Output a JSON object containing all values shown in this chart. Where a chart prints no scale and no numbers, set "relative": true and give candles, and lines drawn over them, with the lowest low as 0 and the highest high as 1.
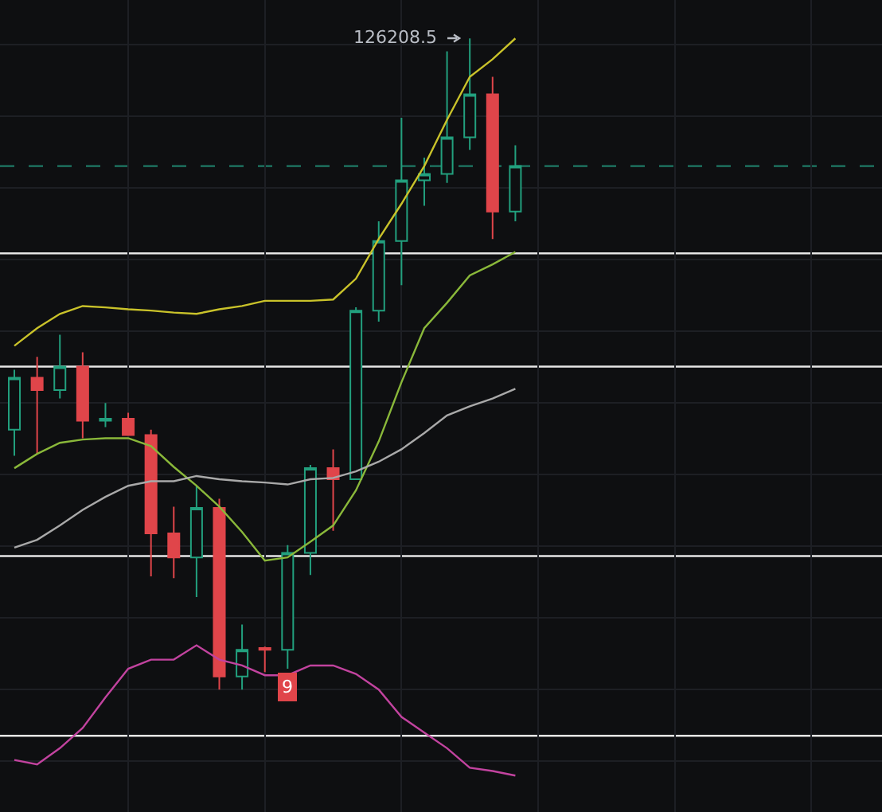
{
  "chart_data": {
    "type": "candlestick",
    "relative": true,
    "grid": true,
    "categories": [
      null,
      null,
      null,
      null,
      null,
      null,
      null,
      null,
      null,
      null,
      null,
      null,
      null,
      null,
      null,
      null,
      null,
      null,
      null,
      null,
      null,
      null,
      null
    ],
    "ohlc": [
      [
        0.399,
        0.491,
        0.359,
        0.479
      ],
      [
        0.479,
        0.511,
        0.362,
        0.46
      ],
      [
        0.46,
        0.545,
        0.447,
        0.496
      ],
      [
        0.496,
        0.518,
        0.386,
        0.413
      ],
      [
        0.413,
        0.44,
        0.403,
        0.416
      ],
      [
        0.416,
        0.425,
        0.391,
        0.391
      ],
      [
        0.391,
        0.399,
        0.174,
        0.24
      ],
      [
        0.24,
        0.281,
        0.171,
        0.203
      ],
      [
        0.203,
        0.313,
        0.142,
        0.279
      ],
      [
        0.279,
        0.293,
        0,
        0.02
      ],
      [
        0.02,
        0.1,
        0,
        0.061
      ],
      [
        0.064,
        0.066,
        0.027,
        0.061
      ],
      [
        0.061,
        0.222,
        0.032,
        0.21
      ],
      [
        0.21,
        0.345,
        0.176,
        0.34
      ],
      [
        0.34,
        0.369,
        0.244,
        0.323
      ],
      [
        0.323,
        0.587,
        0.323,
        0.582
      ],
      [
        0.582,
        0.719,
        0.565,
        0.689
      ],
      [
        0.689,
        0.878,
        0.621,
        0.782
      ],
      [
        0.782,
        0.817,
        0.743,
        0.792
      ],
      [
        0.792,
        0.98,
        0.778,
        0.848
      ],
      [
        0.848,
        1,
        0.829,
        0.914
      ],
      [
        0.914,
        0.941,
        0.692,
        0.734
      ],
      [
        0.734,
        0.836,
        0.719,
        0.804
      ]
    ],
    "colors": [
      "#22a07e",
      "#e0454a",
      "#22a07e",
      "#e0454a",
      "#22a07e",
      "#e0454a",
      "#e0454a",
      "#e0454a",
      "#22a07e",
      "#e0454a",
      "#22a07e",
      "#e0454a",
      "#22a07e",
      "#22a07e",
      "#e0454a",
      "#22a07e",
      "#22a07e",
      "#22a07e",
      "#22a07e",
      "#22a07e",
      "#22a07e",
      "#e0454a",
      "#22a07e"
    ],
    "series": [
      {
        "type": "line",
        "color": "#c9c22a",
        "values": [
          0.528,
          0.555,
          0.577,
          0.589,
          0.587,
          0.584,
          0.582,
          0.579,
          0.577,
          0.584,
          0.589,
          0.597,
          0.597,
          0.597,
          0.599,
          0.631,
          0.692,
          0.746,
          0.804,
          0.875,
          0.941,
          0.968,
          1.0
        ]
      },
      {
        "type": "line",
        "color": "#8ab83a",
        "values": [
          0.34,
          0.362,
          0.379,
          0.384,
          0.386,
          0.386,
          0.374,
          0.342,
          0.313,
          0.281,
          0.242,
          0.198,
          0.203,
          0.227,
          0.252,
          0.306,
          0.381,
          0.472,
          0.555,
          0.594,
          0.636,
          0.653,
          0.672
        ]
      },
      {
        "type": "line",
        "color": "#a9a9a9",
        "values": [
          0.218,
          0.23,
          0.252,
          0.276,
          0.296,
          0.313,
          0.32,
          0.32,
          0.328,
          0.323,
          0.32,
          0.318,
          0.315,
          0.323,
          0.325,
          0.335,
          0.35,
          0.369,
          0.394,
          0.421,
          0.435,
          0.447,
          0.462
        ]
      },
      {
        "type": "line",
        "color": "#c2439f",
        "values": [
          -0.108,
          -0.115,
          -0.09,
          -0.059,
          -0.012,
          0.032,
          0.046,
          0.046,
          0.068,
          0.046,
          0.037,
          0.022,
          0.022,
          0.037,
          0.037,
          0.024,
          0,
          -0.042,
          -0.066,
          -0.09,
          -0.12,
          -0.125,
          -0.132
        ]
      }
    ],
    "ref_lines": [
      {
        "axis": "y",
        "value": 0.67,
        "color": "#e6e6e6"
      },
      {
        "axis": "y",
        "value": 0.496,
        "color": "#e6e6e6"
      },
      {
        "axis": "y",
        "value": 0.205,
        "color": "#e6e6e6"
      },
      {
        "axis": "y",
        "value": -0.071,
        "color": "#e6e6e6"
      },
      {
        "axis": "y",
        "value": 0.804,
        "color": "#1e7a66",
        "line_style": "dashed"
      }
    ],
    "annotations": [
      "126208.5",
      "9"
    ]
  }
}
